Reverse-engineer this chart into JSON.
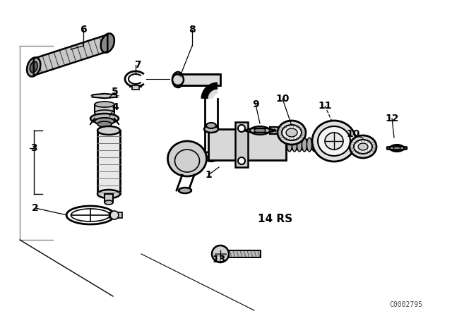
{
  "background_color": "#ffffff",
  "line_color": "#000000",
  "part_number_text": "C0002795",
  "ref_text": "14 RS",
  "fig_width": 6.4,
  "fig_height": 4.48,
  "dpi": 100,
  "label_positions": [
    [
      "6",
      118,
      42
    ],
    [
      "7",
      195,
      92
    ],
    [
      "8",
      272,
      42
    ],
    [
      "5",
      163,
      130
    ],
    [
      "4",
      163,
      152
    ],
    [
      "3",
      48,
      210
    ],
    [
      "2",
      50,
      295
    ],
    [
      "1",
      295,
      248
    ],
    [
      "9",
      362,
      148
    ],
    [
      "10",
      400,
      140
    ],
    [
      "11",
      460,
      150
    ],
    [
      "10",
      500,
      190
    ],
    [
      "12",
      555,
      168
    ],
    [
      "13",
      310,
      368
    ]
  ]
}
